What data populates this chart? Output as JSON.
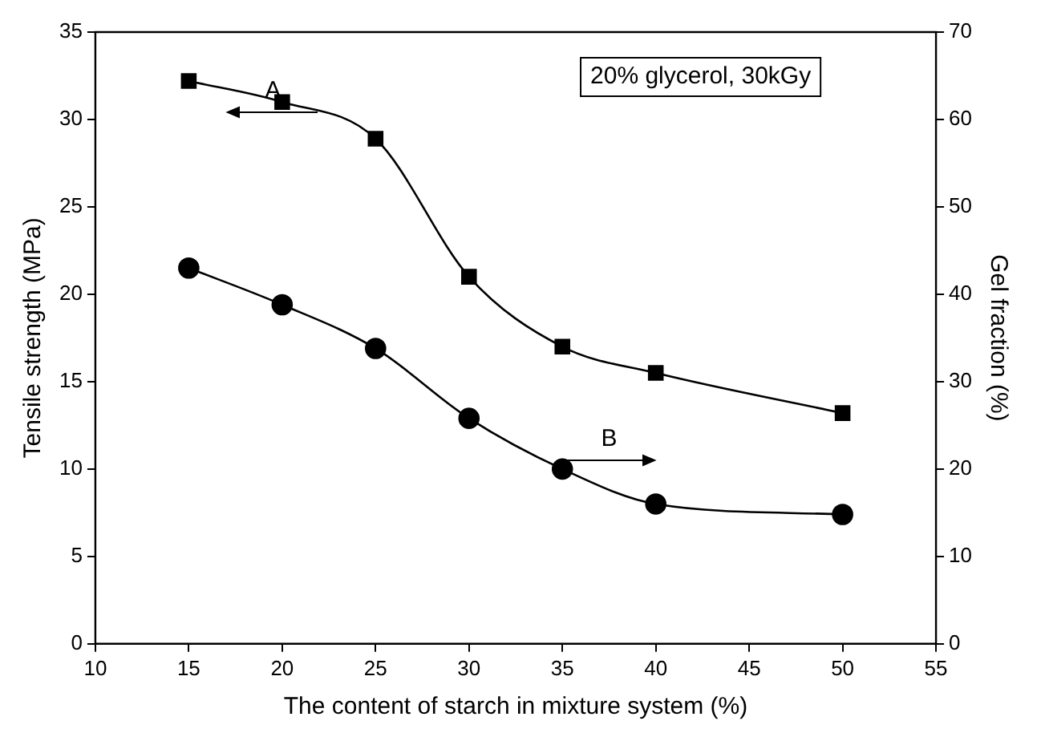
{
  "chart_data": {
    "type": "line",
    "xlabel": "The content of starch in mixture system (%)",
    "ylabel": "Tensile strength (MPa)",
    "y2label": "Gel fraction (%)",
    "x": [
      15,
      20,
      25,
      30,
      35,
      40,
      50
    ],
    "series": [
      {
        "name": "A",
        "color": "#000000",
        "marker": "square",
        "values": [
          32.2,
          31.0,
          28.9,
          21.0,
          17.0,
          15.5,
          13.2
        ]
      },
      {
        "name": "B",
        "color": "#000000",
        "marker": "circle",
        "axis": "y2",
        "values": [
          43,
          38.8,
          33.8,
          25.8,
          20,
          16,
          14.8
        ]
      }
    ],
    "xlim": [
      10,
      55
    ],
    "xticks": [
      10,
      15,
      20,
      25,
      30,
      35,
      40,
      45,
      50,
      55
    ],
    "ylim": [
      0,
      35
    ],
    "yticks": [
      0,
      5,
      10,
      15,
      20,
      25,
      30,
      35
    ],
    "y2lim": [
      0,
      70
    ],
    "y2ticks": [
      0,
      10,
      20,
      30,
      40,
      50,
      60,
      70
    ],
    "annotations": [
      "20% glycerol, 30kGy"
    ],
    "legend": false,
    "grid": false,
    "line_style": "solid"
  }
}
